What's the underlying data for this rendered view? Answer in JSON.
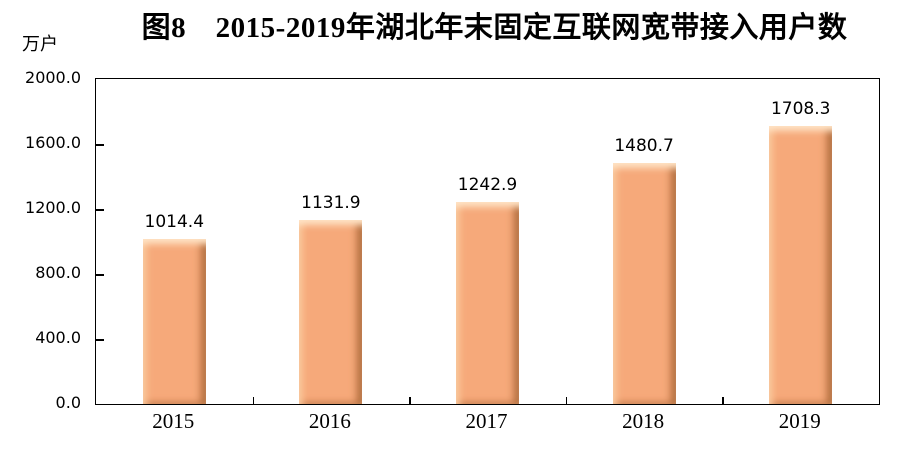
{
  "chart_data": {
    "type": "bar",
    "title": "图8　2015-2019年湖北年末固定互联网宽带接入用户数",
    "unit_label": "万户",
    "categories": [
      "2015",
      "2016",
      "2017",
      "2018",
      "2019"
    ],
    "values": [
      1014.4,
      1131.9,
      1242.9,
      1480.7,
      1708.3
    ],
    "value_labels": [
      "1014.4",
      "1131.9",
      "1242.9",
      "1480.7",
      "1708.3"
    ],
    "xlabel": "",
    "ylabel": "万户",
    "ylim": [
      0,
      2000
    ],
    "y_tick_step": 400,
    "y_tick_labels": [
      "0.0",
      "400.0",
      "800.0",
      "1200.0",
      "1600.0",
      "2000.0"
    ],
    "bar_color": "#f6a97a",
    "bar_border_effect": "bevel",
    "axis_color": "#000000",
    "grid": false,
    "legend": "none",
    "tick_direction": "in"
  }
}
